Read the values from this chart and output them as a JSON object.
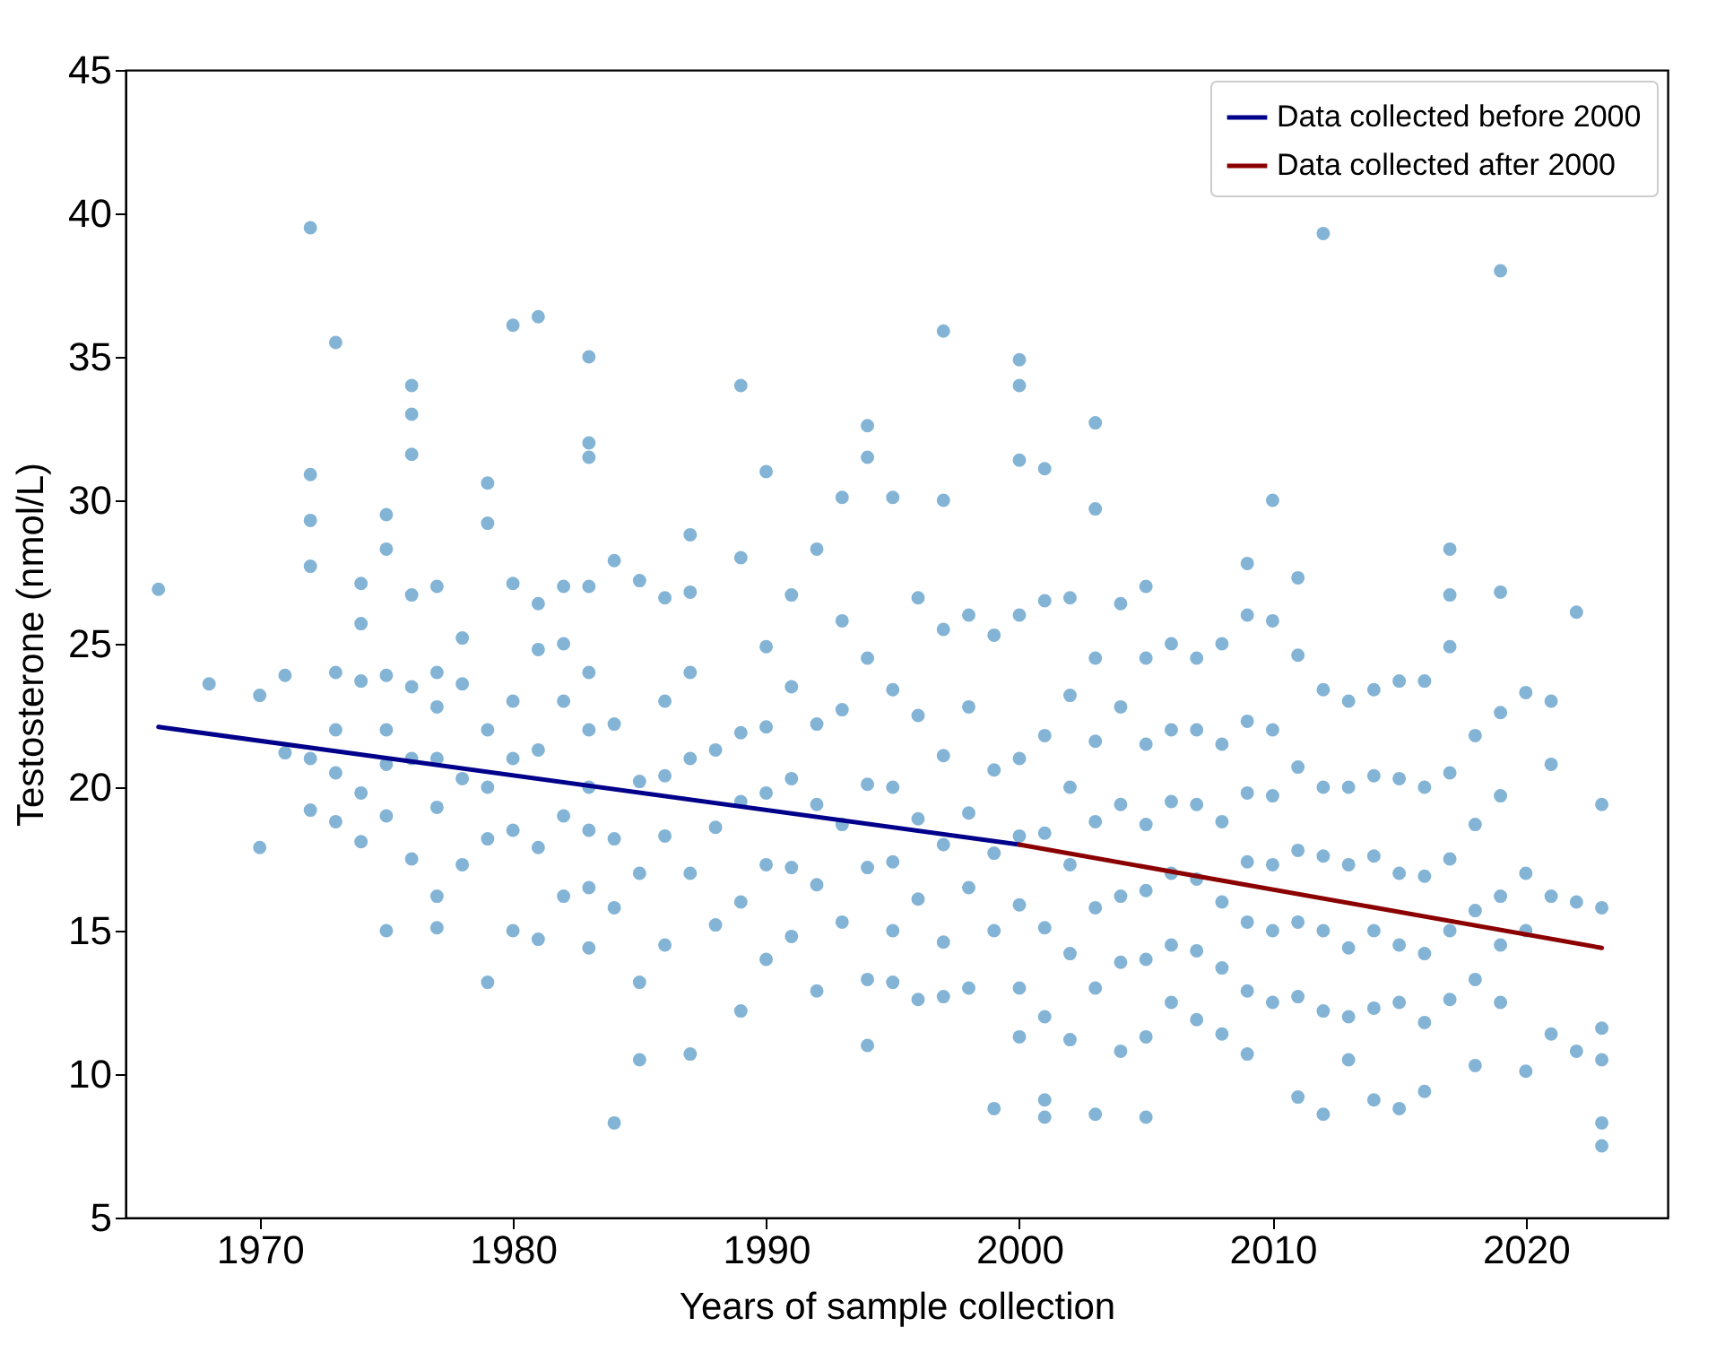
{
  "chart_data": {
    "type": "scatter",
    "xlabel": "Years of sample collection",
    "ylabel": "Testosterone (nmol/L)",
    "xlim": [
      1964.7,
      2025.6
    ],
    "ylim": [
      5,
      45
    ],
    "xticks": [
      1970,
      1980,
      1990,
      2000,
      2010,
      2020
    ],
    "yticks": [
      5,
      10,
      15,
      20,
      25,
      30,
      35,
      40,
      45
    ],
    "grid": false,
    "legend": "top right",
    "series": [
      {
        "marker": "circle",
        "color": "#1f77b4",
        "x": [
          1966,
          1968,
          1970,
          1970,
          1971,
          1971,
          1972,
          1972,
          1972,
          1972,
          1972,
          1972,
          1973,
          1973,
          1973,
          1973,
          1973,
          1974,
          1974,
          1974,
          1974,
          1974,
          1975,
          1975,
          1975,
          1975,
          1975,
          1975,
          1975,
          1976,
          1976,
          1976,
          1976,
          1976,
          1976,
          1976,
          1977,
          1977,
          1977,
          1977,
          1977,
          1977,
          1977,
          1978,
          1978,
          1978,
          1978,
          1979,
          1979,
          1979,
          1979,
          1979,
          1979,
          1980,
          1980,
          1980,
          1980,
          1980,
          1980,
          1981,
          1981,
          1981,
          1981,
          1981,
          1981,
          1982,
          1982,
          1982,
          1982,
          1982,
          1983,
          1983,
          1983,
          1983,
          1983,
          1983,
          1983,
          1983,
          1983,
          1983,
          1984,
          1984,
          1984,
          1984,
          1984,
          1985,
          1985,
          1985,
          1985,
          1985,
          1986,
          1986,
          1986,
          1986,
          1986,
          1987,
          1987,
          1987,
          1987,
          1987,
          1987,
          1988,
          1988,
          1988,
          1989,
          1989,
          1989,
          1989,
          1989,
          1989,
          1990,
          1990,
          1990,
          1990,
          1990,
          1990,
          1991,
          1991,
          1991,
          1991,
          1991,
          1992,
          1992,
          1992,
          1992,
          1992,
          1993,
          1993,
          1993,
          1993,
          1993,
          1994,
          1994,
          1994,
          1994,
          1994,
          1994,
          1994,
          1995,
          1995,
          1995,
          1995,
          1995,
          1995,
          1996,
          1996,
          1996,
          1996,
          1996,
          1997,
          1997,
          1997,
          1997,
          1997,
          1997,
          1997,
          1998,
          1998,
          1998,
          1998,
          1998,
          1999,
          1999,
          1999,
          1999,
          1999,
          2000,
          2000,
          2000,
          2000,
          2000,
          2000,
          2000,
          2000,
          2000,
          2001,
          2001,
          2001,
          2001,
          2001,
          2001,
          2001,
          2001,
          2002,
          2002,
          2002,
          2002,
          2002,
          2002,
          2003,
          2003,
          2003,
          2003,
          2003,
          2003,
          2003,
          2003,
          2004,
          2004,
          2004,
          2004,
          2004,
          2004,
          2005,
          2005,
          2005,
          2005,
          2005,
          2005,
          2005,
          2005,
          2006,
          2006,
          2006,
          2006,
          2006,
          2006,
          2007,
          2007,
          2007,
          2007,
          2007,
          2007,
          2008,
          2008,
          2008,
          2008,
          2008,
          2008,
          2009,
          2009,
          2009,
          2009,
          2009,
          2009,
          2009,
          2009,
          2010,
          2010,
          2010,
          2010,
          2010,
          2010,
          2010,
          2011,
          2011,
          2011,
          2011,
          2011,
          2011,
          2011,
          2012,
          2012,
          2012,
          2012,
          2012,
          2012,
          2012,
          2013,
          2013,
          2013,
          2013,
          2013,
          2013,
          2014,
          2014,
          2014,
          2014,
          2014,
          2014,
          2015,
          2015,
          2015,
          2015,
          2015,
          2015,
          2016,
          2016,
          2016,
          2016,
          2016,
          2016,
          2017,
          2017,
          2017,
          2017,
          2017,
          2017,
          2017,
          2018,
          2018,
          2018,
          2018,
          2018,
          2019,
          2019,
          2019,
          2019,
          2019,
          2019,
          2019,
          2020,
          2020,
          2020,
          2020,
          2021,
          2021,
          2021,
          2021,
          2022,
          2022,
          2022,
          2023,
          2023,
          2023,
          2023,
          2023,
          2023
        ],
        "values": [
          26.9,
          23.6,
          23.2,
          17.9,
          23.9,
          21.2,
          39.5,
          30.9,
          29.3,
          27.7,
          19.2,
          21.0,
          35.5,
          24.0,
          22.0,
          20.5,
          18.8,
          27.1,
          25.7,
          23.7,
          19.8,
          18.1,
          29.5,
          28.3,
          23.9,
          22.0,
          20.8,
          19.0,
          15.0,
          34.0,
          33.0,
          31.6,
          26.7,
          23.5,
          21.0,
          17.5,
          27.0,
          24.0,
          22.8,
          21.0,
          19.3,
          16.2,
          15.1,
          25.2,
          23.6,
          20.3,
          17.3,
          30.6,
          29.2,
          22.0,
          20.0,
          18.2,
          13.2,
          36.1,
          27.1,
          23.0,
          21.0,
          18.5,
          15.0,
          36.4,
          26.4,
          24.8,
          21.3,
          17.9,
          14.7,
          27.0,
          25.0,
          23.0,
          19.0,
          16.2,
          35.0,
          32.0,
          31.5,
          27.0,
          24.0,
          22.0,
          20.0,
          18.5,
          16.5,
          14.4,
          8.3,
          27.9,
          22.2,
          18.2,
          15.8,
          10.5,
          27.2,
          20.2,
          17.0,
          13.2,
          26.6,
          23.0,
          20.4,
          18.3,
          14.5,
          28.8,
          26.8,
          24.0,
          21.0,
          17.0,
          10.7,
          21.3,
          18.6,
          15.2,
          34.0,
          28.0,
          21.9,
          19.5,
          16.0,
          12.2,
          31.0,
          24.9,
          22.1,
          19.8,
          17.3,
          14.0,
          26.7,
          23.5,
          20.3,
          17.2,
          14.8,
          28.3,
          22.2,
          19.4,
          16.6,
          12.9,
          30.1,
          25.8,
          22.7,
          18.7,
          15.3,
          32.6,
          31.5,
          24.5,
          20.1,
          17.2,
          13.3,
          11.0,
          30.1,
          23.4,
          20.0,
          17.4,
          15.0,
          13.2,
          26.6,
          22.5,
          18.9,
          16.1,
          12.6,
          35.9,
          30.0,
          25.5,
          21.1,
          18.0,
          14.6,
          12.7,
          26.0,
          22.8,
          19.1,
          16.5,
          13.0,
          25.3,
          20.6,
          17.7,
          15.0,
          8.8,
          34.9,
          34.0,
          31.4,
          26.0,
          21.0,
          18.3,
          15.9,
          13.0,
          11.3,
          31.1,
          26.5,
          21.8,
          18.4,
          15.1,
          12.0,
          9.1,
          8.5,
          26.6,
          23.2,
          20.0,
          17.3,
          14.2,
          11.2,
          32.7,
          29.7,
          24.5,
          21.6,
          18.8,
          15.8,
          13.0,
          8.6,
          26.4,
          22.8,
          19.4,
          16.2,
          13.9,
          10.8,
          27.0,
          24.5,
          21.5,
          18.7,
          16.4,
          14.0,
          11.3,
          8.5,
          25.0,
          22.0,
          19.5,
          17.0,
          14.5,
          12.5,
          24.5,
          22.0,
          19.4,
          16.8,
          14.3,
          11.9,
          25.0,
          21.5,
          18.8,
          16.0,
          13.7,
          11.4,
          27.8,
          26.0,
          22.3,
          19.8,
          17.4,
          15.3,
          12.9,
          10.7,
          30.0,
          25.8,
          22.0,
          19.7,
          17.3,
          15.0,
          12.5,
          27.3,
          24.6,
          20.7,
          17.8,
          15.3,
          12.7,
          9.2,
          39.3,
          23.4,
          20.0,
          17.6,
          15.0,
          12.2,
          8.6,
          23.0,
          20.0,
          17.3,
          14.4,
          12.0,
          10.5,
          23.4,
          20.4,
          17.6,
          15.0,
          12.3,
          9.1,
          23.7,
          20.3,
          17.0,
          14.5,
          12.5,
          8.8,
          23.7,
          20.0,
          16.9,
          14.2,
          11.8,
          9.4,
          28.3,
          26.7,
          24.9,
          20.5,
          17.5,
          15.0,
          12.6,
          21.8,
          18.7,
          15.7,
          13.3,
          10.3,
          38.0,
          26.8,
          22.6,
          19.7,
          16.2,
          14.5,
          12.5,
          23.3,
          17.0,
          15.0,
          10.1,
          23.0,
          20.8,
          16.2,
          11.4,
          26.1,
          16.0,
          10.8,
          19.4,
          15.8,
          11.6,
          10.5,
          8.3,
          7.5
        ]
      },
      {
        "type": "line",
        "name": "Data collected before 2000",
        "marker": "none",
        "color": "#00008b",
        "x": [
          1966,
          2000
        ],
        "values": [
          22.1,
          18.0
        ]
      },
      {
        "type": "line",
        "name": "Data collected after 2000",
        "marker": "none",
        "color": "#8b0000",
        "x": [
          2000,
          2023
        ],
        "values": [
          18.0,
          14.4
        ]
      }
    ]
  }
}
